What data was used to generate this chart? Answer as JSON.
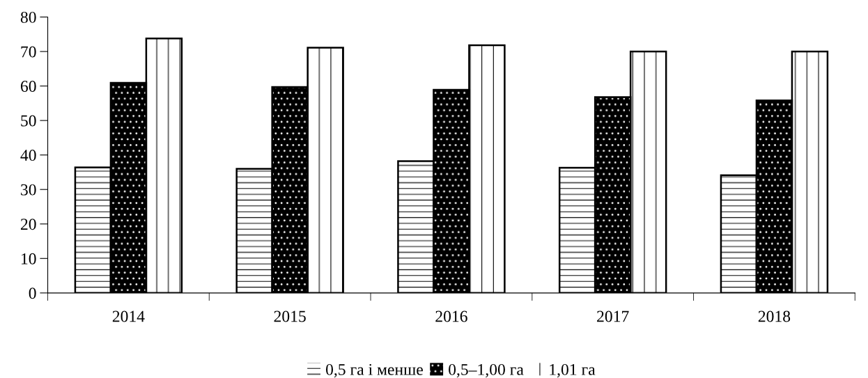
{
  "chart_data": {
    "type": "bar",
    "categories": [
      "2014",
      "2015",
      "2016",
      "2017",
      "2018"
    ],
    "series": [
      {
        "name": "0,5 га і менше",
        "color": "#ffffff",
        "values": [
          36.4,
          36.0,
          38.2,
          36.3,
          34.1
        ]
      },
      {
        "name": "0,5–1,00 га",
        "color": "#000000",
        "values": [
          60.9,
          59.7,
          58.9,
          56.8,
          55.8
        ]
      },
      {
        "name": "1,01 га",
        "color": "#ffffff",
        "values": [
          73.8,
          71.1,
          71.8,
          70.0,
          70.0
        ]
      }
    ],
    "ylim": [
      0,
      80
    ],
    "yticks": [
      0,
      10,
      20,
      30,
      40,
      50,
      60,
      70,
      80
    ],
    "grid": false,
    "legend": "bottom"
  }
}
